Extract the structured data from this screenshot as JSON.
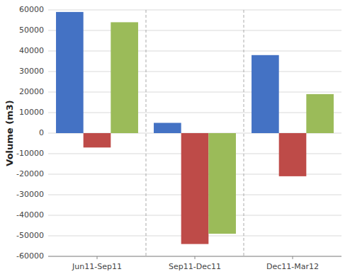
{
  "chart_data": {
    "type": "bar",
    "ylabel": "Volume (m3)",
    "categories": [
      "Jun11-Sep11",
      "Sep11-Dec11",
      "Dec11-Mar12"
    ],
    "series": [
      {
        "color": "#4472C4",
        "values": [
          59000,
          5000,
          38000
        ]
      },
      {
        "color": "#BE4B48",
        "values": [
          -7000,
          -54000,
          -21000
        ]
      },
      {
        "color": "#9BBB59",
        "values": [
          54000,
          -49000,
          19000
        ]
      }
    ],
    "ylim": [
      -60000,
      60000
    ],
    "yticks": [
      -60000,
      -50000,
      -40000,
      -30000,
      -20000,
      -10000,
      0,
      10000,
      20000,
      30000,
      40000,
      50000,
      60000
    ],
    "grid": true
  }
}
